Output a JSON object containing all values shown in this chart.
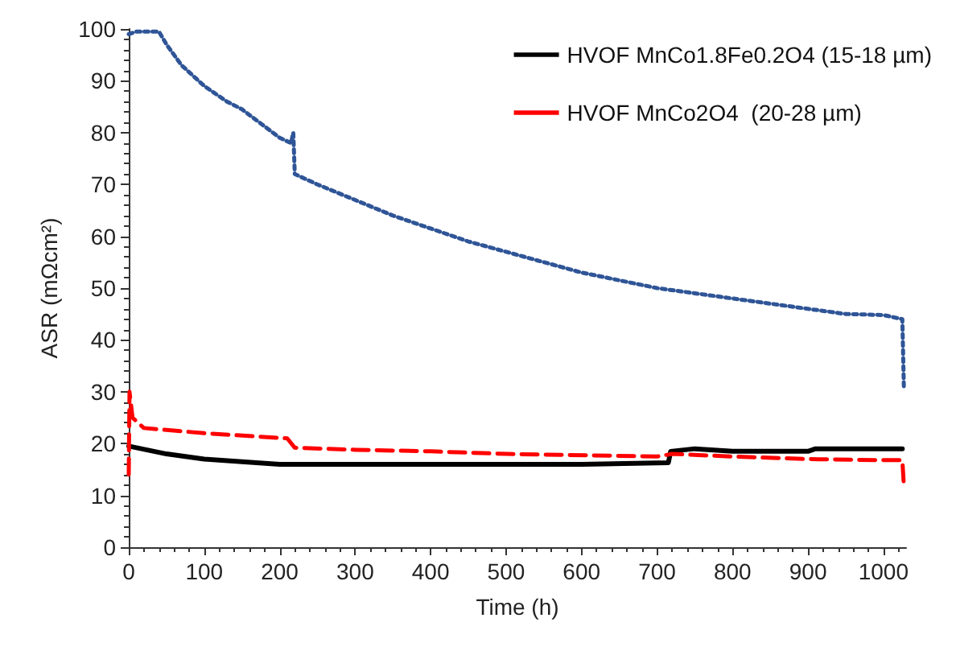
{
  "chart_data": {
    "type": "line",
    "xlabel": "Time (h)",
    "ylabel": "ASR (mΩcm²)",
    "xlim": [
      0,
      1030
    ],
    "xticks": [
      0,
      100,
      200,
      300,
      400,
      500,
      600,
      700,
      800,
      900,
      1000
    ],
    "ylim": [
      0,
      100
    ],
    "yticks": [
      0,
      10,
      20,
      30,
      40,
      50,
      60,
      70,
      80,
      90,
      100
    ],
    "grid": false,
    "legend": "top right",
    "marker": "none",
    "series": [
      {
        "color": "#2f5597",
        "line_style": "dotted",
        "x": [
          0,
          10,
          40,
          50,
          70,
          100,
          130,
          150,
          200,
          215,
          218,
          220,
          250,
          300,
          350,
          400,
          450,
          500,
          550,
          600,
          650,
          700,
          750,
          800,
          850,
          900,
          950,
          1000,
          1025,
          1027
        ],
        "values": [
          99,
          99.5,
          99.5,
          97,
          93,
          89,
          86,
          84.5,
          79,
          78,
          80,
          72,
          70,
          67,
          64,
          61.5,
          59,
          57,
          55,
          53,
          51.5,
          50,
          49,
          48,
          47,
          46,
          45,
          44.8,
          44,
          31
        ]
      },
      {
        "name": "HVOF MnCo1.8Fe0.2O4 (15-18 µm)",
        "color": "#000000",
        "line_style": "solid",
        "x": [
          0,
          50,
          100,
          150,
          200,
          300,
          400,
          500,
          600,
          715,
          718,
          750,
          800,
          900,
          910,
          1000,
          1025
        ],
        "values": [
          19.5,
          18,
          17,
          16.5,
          16,
          16,
          16,
          16,
          16,
          16.3,
          18.5,
          19,
          18.5,
          18.5,
          19,
          19,
          19
        ]
      },
      {
        "name": "HVOF MnCo2O4  (20-28 µm)",
        "color": "#ff0000",
        "line_style": "dashed",
        "x": [
          0,
          1,
          5,
          20,
          100,
          210,
          220,
          300,
          400,
          500,
          700,
          720,
          800,
          900,
          1000,
          1025,
          1027
        ],
        "values": [
          14,
          30,
          25,
          23,
          22,
          21,
          19.2,
          18.8,
          18.5,
          18,
          17.5,
          18,
          17.5,
          17,
          16.8,
          16.8,
          12
        ]
      }
    ]
  }
}
